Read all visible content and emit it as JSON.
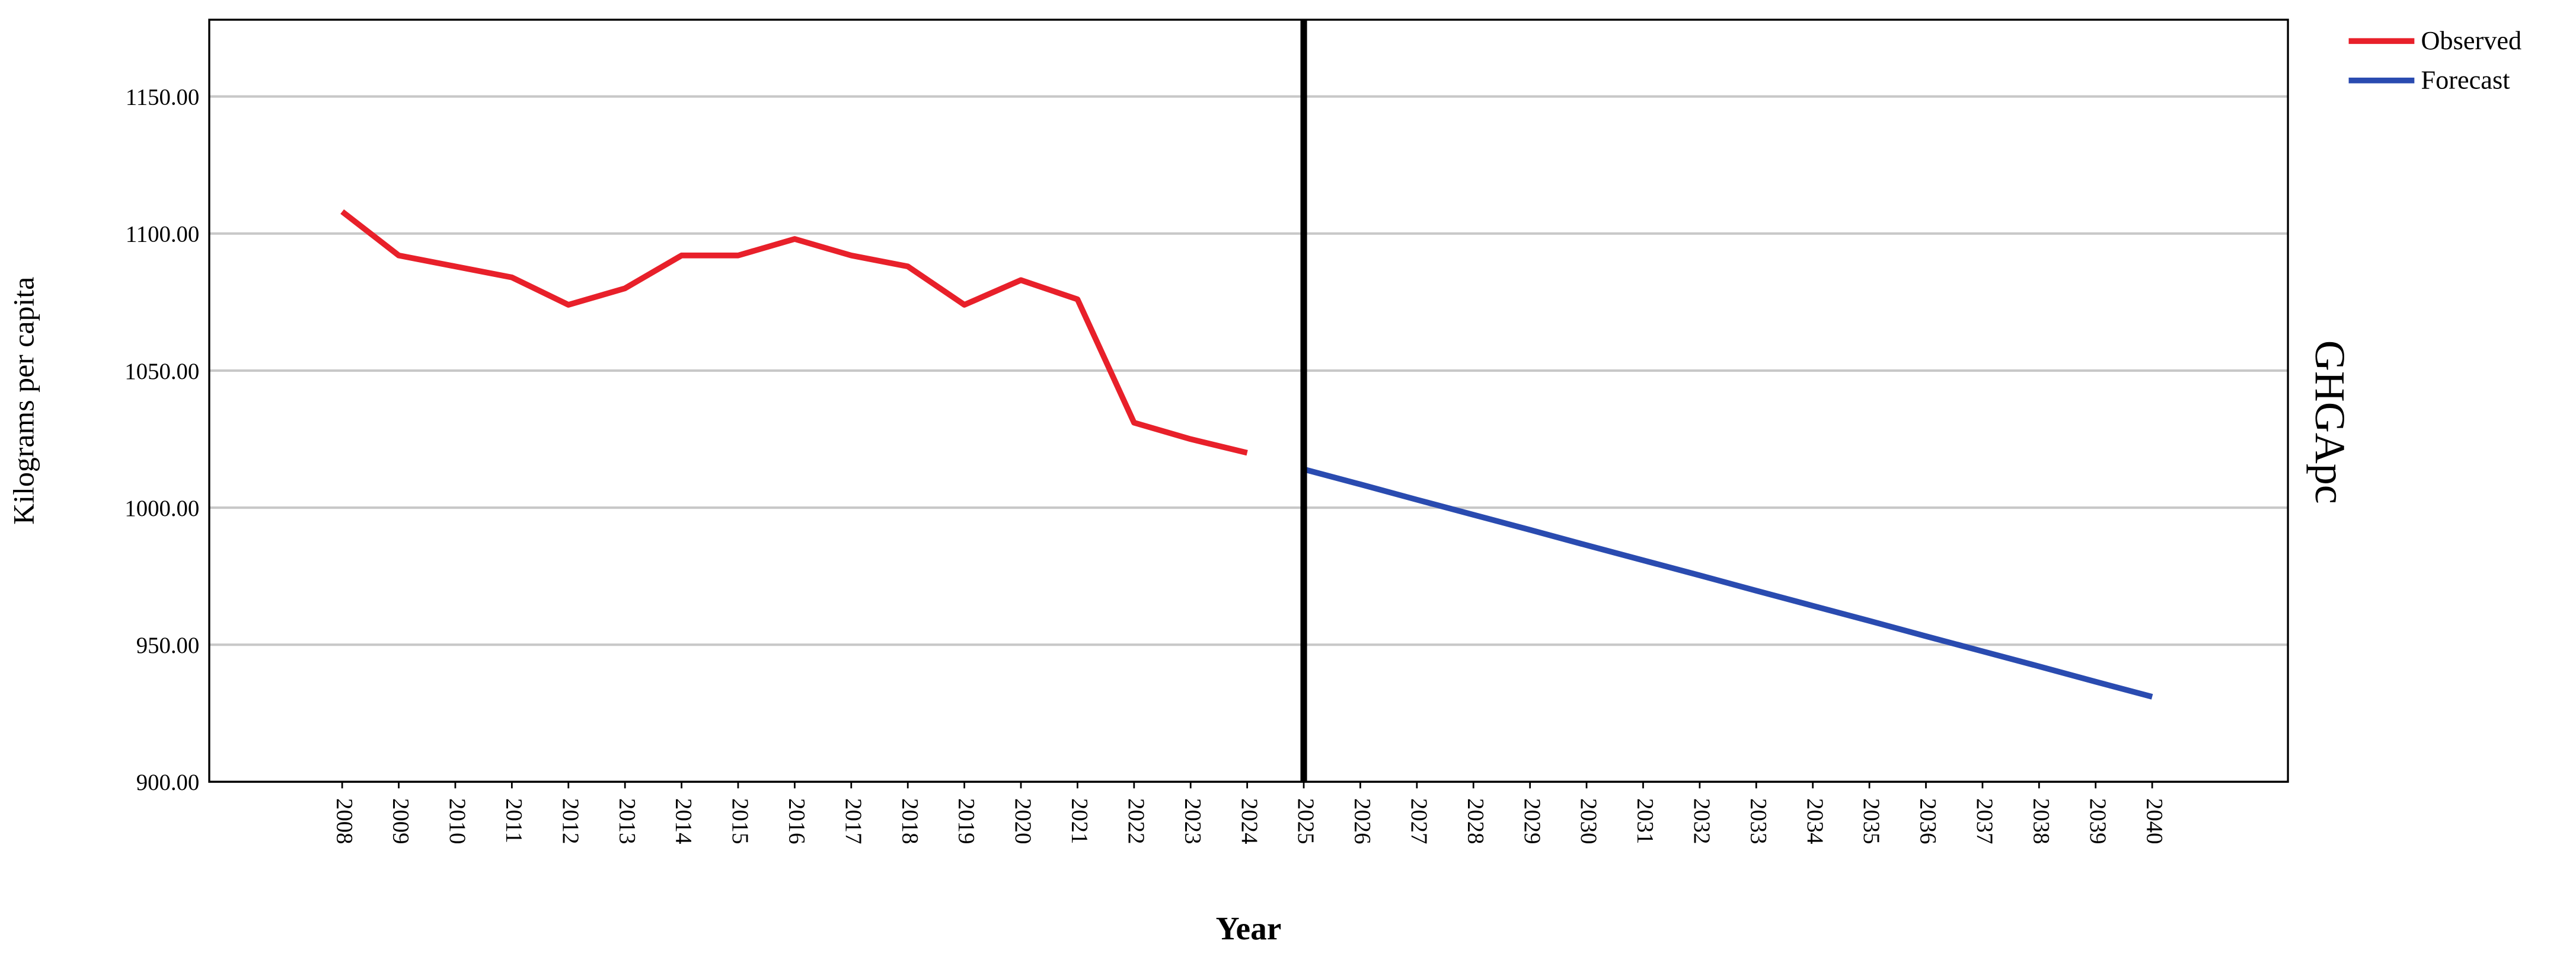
{
  "chart_data": {
    "type": "line",
    "y_label": "Kilograms per capita",
    "x_label": "Year",
    "panel_label": "GHGApc",
    "x": [
      2008,
      2009,
      2010,
      2011,
      2012,
      2013,
      2014,
      2015,
      2016,
      2017,
      2018,
      2019,
      2020,
      2021,
      2022,
      2023,
      2024,
      2025,
      2026,
      2027,
      2028,
      2029,
      2030,
      2031,
      2032,
      2033,
      2034,
      2035,
      2036,
      2037,
      2038,
      2039,
      2040
    ],
    "series": [
      {
        "name": "Observed",
        "color": "#e8202a",
        "values": [
          1108,
          1092,
          1088,
          1084,
          1074,
          1080,
          1092,
          1092,
          1098,
          1092,
          1088,
          1074,
          1083,
          1076,
          1031,
          1025,
          1020,
          null,
          null,
          null,
          null,
          null,
          null,
          null,
          null,
          null,
          null,
          null,
          null,
          null,
          null,
          null,
          null
        ]
      },
      {
        "name": "Forecast",
        "color": "#2a4bb0",
        "values": [
          null,
          null,
          null,
          null,
          null,
          null,
          null,
          null,
          null,
          null,
          null,
          null,
          null,
          null,
          null,
          null,
          null,
          1014,
          1008.5,
          1002.9,
          997.4,
          991.9,
          986.3,
          980.8,
          975.3,
          969.7,
          964.2,
          958.7,
          953.1,
          947.6,
          942.1,
          936.5,
          931
        ]
      }
    ],
    "xlim": [
      2005.65,
      2042.4
    ],
    "xticks": [
      2008,
      2009,
      2010,
      2011,
      2012,
      2013,
      2014,
      2015,
      2016,
      2017,
      2018,
      2019,
      2020,
      2021,
      2022,
      2023,
      2024,
      2025,
      2026,
      2027,
      2028,
      2029,
      2030,
      2031,
      2032,
      2033,
      2034,
      2035,
      2036,
      2037,
      2038,
      2039,
      2040
    ],
    "ylim": [
      900,
      1178
    ],
    "yticks": [
      {
        "value": 900,
        "label": "900.00"
      },
      {
        "value": 950,
        "label": "950.00"
      },
      {
        "value": 1000,
        "label": "1000.00"
      },
      {
        "value": 1050,
        "label": "1050.00"
      },
      {
        "value": 1100,
        "label": "1100.00"
      },
      {
        "value": 1150,
        "label": "1150.00"
      }
    ],
    "grid": true,
    "reference_line_x": 2025,
    "legend": "top-right"
  }
}
